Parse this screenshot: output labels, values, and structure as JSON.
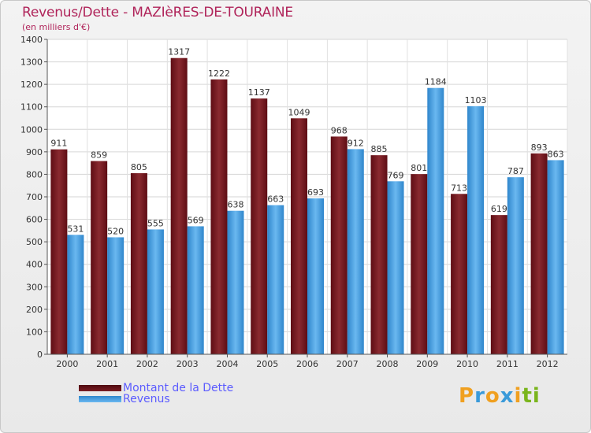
{
  "chart_data": {
    "type": "bar",
    "title": "Revenus/Dette - MAZIèRES-DE-TOURAINE",
    "subtitle": "(en milliers d'€)",
    "categories": [
      "2000",
      "2001",
      "2002",
      "2003",
      "2004",
      "2005",
      "2006",
      "2007",
      "2008",
      "2009",
      "2010",
      "2011",
      "2012"
    ],
    "series": [
      {
        "name": "Montant de la Dette",
        "color": "#7a1c22",
        "values": [
          911,
          859,
          805,
          1317,
          1222,
          1137,
          1049,
          968,
          885,
          801,
          713,
          619,
          893
        ]
      },
      {
        "name": "Revenus",
        "color": "#4fa8e8",
        "values": [
          531,
          520,
          555,
          569,
          638,
          663,
          693,
          912,
          769,
          1184,
          1103,
          787,
          863
        ]
      }
    ],
    "ylim": [
      0,
      1400
    ],
    "yticks": [
      0,
      100,
      200,
      300,
      400,
      500,
      600,
      700,
      800,
      900,
      1000,
      1100,
      1200,
      1300,
      1400
    ],
    "grid": true,
    "legend": "bottom-left"
  },
  "logo": {
    "letters": [
      "P",
      "r",
      "o",
      "x",
      "i",
      "t",
      "i"
    ],
    "colors": [
      "#f0a020",
      "#3a9ad9",
      "#f0a020",
      "#3a9ad9",
      "#f0a020",
      "#7ab51d",
      "#7ab51d"
    ]
  }
}
